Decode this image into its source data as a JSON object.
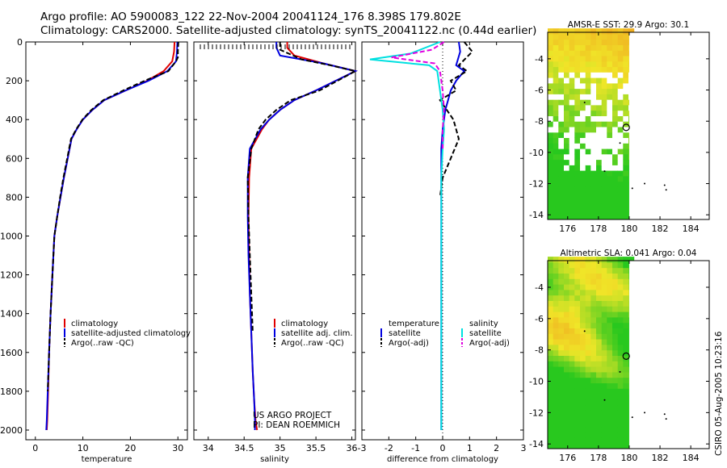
{
  "header": {
    "line1": "Argo profile: AO 5900083_122 22-Nov-2004 20041124_176 8.398S 179.802E",
    "line2": "Climatology: CARS2000. Satellite-adjusted climatology: synTS_20041122.nc (0.44d earlier)"
  },
  "colors": {
    "climatology": "#e00000",
    "satellite": "#0000e0",
    "argo": "#000000",
    "salinity_satellite": "#00e0e0",
    "salinity_argo": "#e000e0"
  },
  "chart_data": [
    {
      "type": "line",
      "id": "temperature",
      "xlabel": "temperature",
      "ylabel": "",
      "xlim": [
        -2,
        32
      ],
      "ylim": [
        2050,
        0
      ],
      "xticks": [
        0,
        10,
        20,
        30
      ],
      "yticks": [
        0,
        200,
        400,
        600,
        800,
        1000,
        1200,
        1400,
        1600,
        1800,
        2000
      ],
      "series": [
        {
          "name": "climatology",
          "color": "#e00000",
          "style": "solid",
          "x": [
            29.3,
            29.2,
            28.8,
            27.0,
            23.5,
            19.0,
            14.5,
            12.0,
            10.0,
            8.7,
            7.6,
            6.8,
            6.0,
            5.3,
            4.6,
            4.0,
            3.6,
            3.2,
            2.9,
            2.7,
            2.5,
            2.4
          ],
          "y": [
            0,
            50,
            100,
            150,
            200,
            250,
            300,
            350,
            400,
            450,
            500,
            600,
            700,
            800,
            900,
            1000,
            1200,
            1400,
            1600,
            1800,
            1950,
            2000
          ]
        },
        {
          "name": "satellite-adjusted climatology",
          "color": "#0000e0",
          "style": "solid",
          "x": [
            29.9,
            29.8,
            29.6,
            27.8,
            23.8,
            19.0,
            14.5,
            12.0,
            10.0,
            8.7,
            7.6,
            6.8,
            6.0,
            5.3,
            4.6,
            4.0,
            3.6,
            3.2,
            2.9,
            2.6,
            2.4,
            2.3
          ],
          "y": [
            0,
            50,
            100,
            150,
            200,
            250,
            300,
            350,
            400,
            450,
            500,
            600,
            700,
            800,
            900,
            1000,
            1200,
            1400,
            1600,
            1800,
            1950,
            2000
          ]
        },
        {
          "name": "Argo(..raw -QC)",
          "color": "#000000",
          "style": "dashed",
          "x": [
            30.1,
            30.0,
            30.0,
            29.6,
            28.0,
            23.0,
            18.5,
            14.3,
            11.8,
            9.9,
            8.6,
            7.5,
            6.7,
            5.9,
            5.2,
            4.6,
            4.0,
            3.6,
            3.2,
            2.9,
            2.6
          ],
          "y": [
            0,
            50,
            80,
            100,
            150,
            200,
            250,
            300,
            350,
            400,
            450,
            500,
            600,
            700,
            800,
            900,
            1000,
            1200,
            1400,
            1600,
            1800
          ]
        }
      ],
      "legend": [
        "climatology",
        "satellite-adjusted climatology",
        "Argo(..raw -QC)"
      ],
      "legend_position": "bottom-center"
    },
    {
      "type": "line",
      "id": "salinity",
      "xlabel": "salinity",
      "ylabel": "",
      "xlim": [
        33.8,
        36.05
      ],
      "ylim": [
        2050,
        0
      ],
      "xticks": [
        "34",
        "34.5",
        "35",
        "35.5",
        "36"
      ],
      "xtick_values": [
        34,
        34.5,
        35,
        35.5,
        36
      ],
      "series": [
        {
          "name": "climatology",
          "color": "#e00000",
          "style": "solid",
          "x": [
            35.1,
            35.1,
            35.2,
            35.6,
            36.05,
            35.5,
            35.2,
            35.0,
            34.85,
            34.75,
            34.6,
            34.57,
            34.56,
            34.57,
            34.58,
            34.6,
            34.62,
            34.64,
            34.66,
            34.68
          ],
          "y": [
            0,
            30,
            70,
            110,
            150,
            250,
            300,
            350,
            400,
            450,
            550,
            700,
            900,
            1100,
            1300,
            1500,
            1700,
            1850,
            1950,
            2000
          ]
        },
        {
          "name": "satellite adj. clim.",
          "color": "#0000e0",
          "style": "solid",
          "x": [
            34.95,
            34.95,
            35.0,
            35.6,
            36.05,
            35.5,
            35.2,
            35.0,
            34.85,
            34.73,
            34.58,
            34.55,
            34.55,
            34.56,
            34.58,
            34.6,
            34.62,
            34.64,
            34.65,
            34.65
          ],
          "y": [
            0,
            30,
            70,
            110,
            150,
            250,
            300,
            350,
            400,
            450,
            550,
            700,
            900,
            1100,
            1300,
            1500,
            1700,
            1850,
            1950,
            2000
          ]
        },
        {
          "name": "Argo(..raw -QC)",
          "color": "#000000",
          "style": "dashed",
          "x": [
            35.0,
            35.0,
            35.3,
            35.7,
            36.05,
            35.55,
            35.15,
            34.95,
            34.8,
            34.7,
            34.6,
            34.55,
            34.56,
            34.58,
            34.6,
            34.62
          ],
          "y": [
            0,
            40,
            90,
            120,
            150,
            250,
            300,
            350,
            400,
            450,
            550,
            700,
            900,
            1100,
            1300,
            1500
          ]
        }
      ],
      "legend": [
        "climatology",
        "satellite adj. clim.",
        "Argo(..raw -QC)"
      ],
      "legend_position": "bottom-center",
      "annotation": [
        "US ARGO PROJECT",
        "PI: DEAN ROEMMICH"
      ]
    },
    {
      "type": "line",
      "id": "difference",
      "xlabel": "difference from climatology",
      "ylabel": "",
      "xlim": [
        -3,
        3
      ],
      "ylim": [
        2050,
        0
      ],
      "xticks": [
        -3,
        -2,
        -1,
        0,
        1,
        2,
        3
      ],
      "series": [
        {
          "name": "temperature satellite",
          "color": "#0000e0",
          "style": "solid",
          "x": [
            0.6,
            0.65,
            0.5,
            0.8,
            0.5,
            0.3,
            0.2,
            0.1,
            0.05,
            0.0,
            -0.05,
            -0.05,
            -0.05,
            -0.05,
            -0.05,
            -0.05
          ],
          "y": [
            0,
            50,
            120,
            150,
            200,
            250,
            300,
            350,
            400,
            450,
            550,
            700,
            900,
            1100,
            1500,
            2000
          ]
        },
        {
          "name": "temperature Argo(-adj)",
          "color": "#000000",
          "style": "dashed",
          "x": [
            0.8,
            1.1,
            0.6,
            0.9,
            0.3,
            0.5,
            -0.1,
            0.4,
            0.6,
            0.3,
            0.0,
            -0.1
          ],
          "y": [
            0,
            50,
            120,
            150,
            200,
            250,
            300,
            400,
            500,
            600,
            700,
            800
          ]
        },
        {
          "name": "salinity satellite",
          "color": "#00e0e0",
          "style": "solid",
          "x": [
            -0.1,
            -1.2,
            -2.7,
            -0.5,
            -0.2,
            -0.1,
            0.0,
            0.05,
            0.0,
            -0.05,
            -0.05,
            -0.05,
            -0.05,
            -0.05
          ],
          "y": [
            0,
            60,
            90,
            120,
            150,
            250,
            350,
            450,
            550,
            700,
            900,
            1100,
            1500,
            2000
          ]
        },
        {
          "name": "salinity Argo(-adj)",
          "color": "#e000e0",
          "style": "dashed",
          "x": [
            0.05,
            -0.4,
            -1.9,
            -0.3,
            -0.1,
            0.0,
            0.05,
            0.0,
            0.0
          ],
          "y": [
            0,
            40,
            80,
            110,
            150,
            250,
            350,
            450,
            550
          ]
        }
      ],
      "legend_left_title": "temperature",
      "legend_right_title": "salinity",
      "legend": [
        "satellite",
        "Argo(-adj)",
        "satellite",
        "Argo(-adj)"
      ],
      "legend_position": "bottom-center"
    },
    {
      "type": "heatmap",
      "id": "sst_map",
      "title": "AMSR-E SST: 29.9 Argo: 30.1",
      "xlim": [
        174.7,
        185.2
      ],
      "ylim": [
        -14.3,
        -2.3
      ],
      "xticks": [
        176,
        178,
        180,
        182,
        184
      ],
      "yticks": [
        -4,
        -6,
        -8,
        -10,
        -12,
        -14
      ],
      "argo_location": [
        179.802,
        -8.398
      ]
    },
    {
      "type": "heatmap",
      "id": "sla_map",
      "title": "Altimetric SLA: 0.041 Argo: 0.04",
      "xlim": [
        174.7,
        185.2
      ],
      "ylim": [
        -14.3,
        -2.3
      ],
      "xticks": [
        176,
        178,
        180,
        182,
        184
      ],
      "yticks": [
        -4,
        -6,
        -8,
        -10,
        -12,
        -14
      ],
      "argo_location": [
        179.802,
        -8.398
      ]
    }
  ],
  "signature": "CSIRO 05-Aug-2005 10:23:16"
}
